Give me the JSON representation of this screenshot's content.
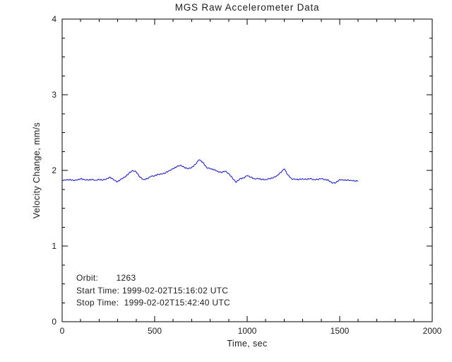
{
  "chart_data": {
    "type": "line",
    "title": "MGS Raw Accelerometer Data",
    "xlabel": "Time, sec",
    "ylabel": "Velocity Change, mm/s",
    "xlim": [
      0,
      2000
    ],
    "ylim": [
      0,
      4
    ],
    "xticks": [
      0,
      500,
      1000,
      1500,
      2000
    ],
    "yticks": [
      0,
      1,
      2,
      3,
      4
    ],
    "x_minor_step": 100,
    "y_minor_step": 0.25,
    "grid": false,
    "line_color": "#2222cc",
    "axis_color": "#000000",
    "text_color": "#1c1c1c",
    "background": "#ffffff",
    "annotations": [
      "Orbit:       1263",
      "Start Time: 1999-02-02T15:16:02 UTC",
      "Stop Time:  1999-02-02T15:42:40 UTC"
    ],
    "series": [
      {
        "name": "velocity-change",
        "x": [
          0,
          20,
          40,
          60,
          80,
          100,
          120,
          140,
          160,
          180,
          200,
          220,
          240,
          260,
          280,
          300,
          320,
          340,
          360,
          380,
          400,
          420,
          440,
          460,
          480,
          500,
          520,
          540,
          560,
          580,
          600,
          620,
          640,
          660,
          680,
          700,
          720,
          740,
          760,
          780,
          800,
          820,
          840,
          860,
          880,
          900,
          920,
          940,
          960,
          980,
          1000,
          1020,
          1040,
          1060,
          1080,
          1100,
          1120,
          1140,
          1160,
          1180,
          1200,
          1220,
          1240,
          1260,
          1280,
          1300,
          1320,
          1340,
          1360,
          1380,
          1400,
          1420,
          1440,
          1460,
          1480,
          1500,
          1520,
          1540,
          1560,
          1580,
          1600
        ],
        "y": [
          1.87,
          1.87,
          1.88,
          1.87,
          1.87,
          1.89,
          1.88,
          1.87,
          1.88,
          1.87,
          1.88,
          1.87,
          1.89,
          1.91,
          1.87,
          1.85,
          1.89,
          1.91,
          1.96,
          2.0,
          1.98,
          1.91,
          1.88,
          1.89,
          1.92,
          1.93,
          1.95,
          1.95,
          1.97,
          2.0,
          2.02,
          2.05,
          2.07,
          2.04,
          2.02,
          2.04,
          2.08,
          2.14,
          2.11,
          2.04,
          2.02,
          2.01,
          1.99,
          1.97,
          1.99,
          1.96,
          1.9,
          1.84,
          1.89,
          1.9,
          1.93,
          1.91,
          1.89,
          1.89,
          1.88,
          1.88,
          1.89,
          1.9,
          1.93,
          1.97,
          2.02,
          1.94,
          1.89,
          1.88,
          1.88,
          1.89,
          1.88,
          1.89,
          1.88,
          1.88,
          1.89,
          1.88,
          1.87,
          1.83,
          1.84,
          1.88,
          1.87,
          1.87,
          1.87,
          1.86,
          1.86
        ]
      }
    ]
  }
}
